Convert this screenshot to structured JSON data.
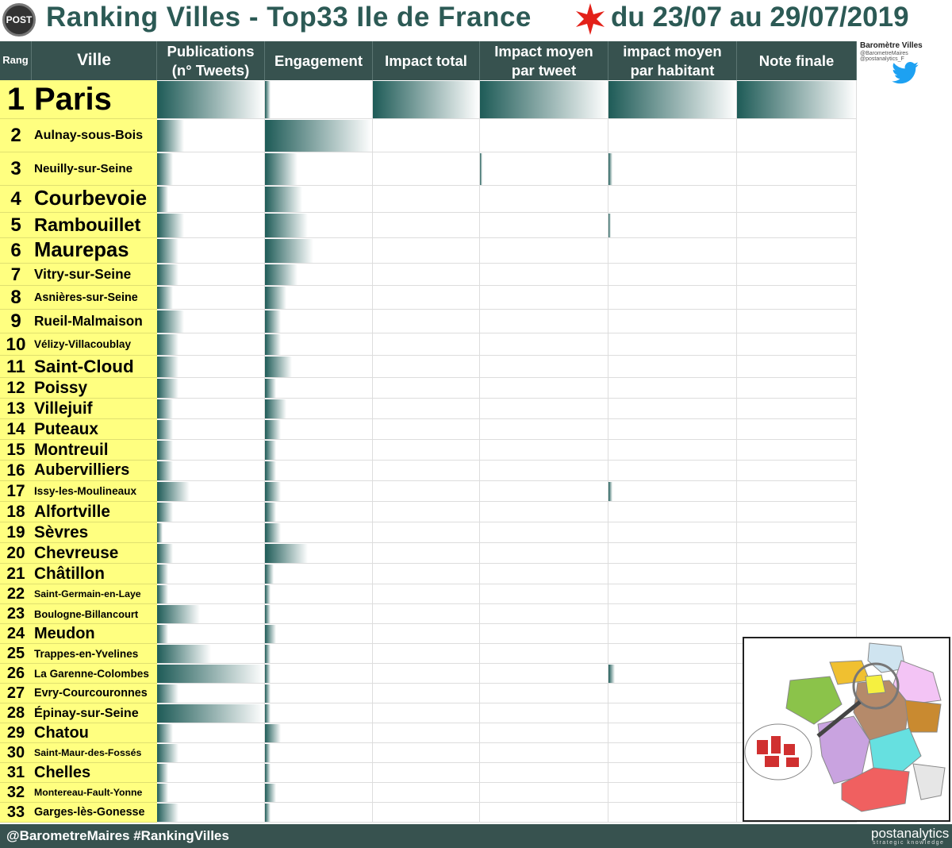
{
  "header": {
    "logo": "POST",
    "title": "Ranking Villes - Top33 Ile de France",
    "period": "du 23/07 au 29/07/2019"
  },
  "side": {
    "title": "Baromètre Villes",
    "handles": "@BarometreMaires @postanalytics_F"
  },
  "table": {
    "columns": [
      "Rang",
      "Ville",
      "Publications (n° Tweets)",
      "Engagement",
      "Impact total",
      "Impact moyen par tweet",
      "impact moyen par habitant",
      "Note finale"
    ],
    "rows": [
      {
        "rank": 1,
        "city": "Paris",
        "bars": [
          100,
          5,
          100,
          100,
          100,
          100
        ]
      },
      {
        "rank": 2,
        "city": "Aulnay-sous-Bois",
        "bars": [
          25,
          100,
          0,
          0,
          0,
          0
        ]
      },
      {
        "rank": 3,
        "city": "Neuilly-sur-Seine",
        "bars": [
          15,
          30,
          0,
          2,
          3,
          0
        ]
      },
      {
        "rank": 4,
        "city": "Courbevoie",
        "bars": [
          10,
          35,
          0,
          0,
          0,
          0
        ]
      },
      {
        "rank": 5,
        "city": "Rambouillet",
        "bars": [
          25,
          40,
          0,
          0,
          2,
          0
        ]
      },
      {
        "rank": 6,
        "city": "Maurepas",
        "bars": [
          20,
          45,
          0,
          0,
          0,
          0
        ]
      },
      {
        "rank": 7,
        "city": "Vitry-sur-Seine",
        "bars": [
          20,
          30,
          0,
          0,
          0,
          0
        ]
      },
      {
        "rank": 8,
        "city": "Asnières-sur-Seine",
        "bars": [
          15,
          20,
          0,
          0,
          0,
          0
        ]
      },
      {
        "rank": 9,
        "city": "Rueil-Malmaison",
        "bars": [
          25,
          15,
          0,
          0,
          0,
          0
        ]
      },
      {
        "rank": 10,
        "city": "Vélizy-Villacoublay",
        "bars": [
          20,
          15,
          0,
          0,
          0,
          0
        ]
      },
      {
        "rank": 11,
        "city": "Saint-Cloud",
        "bars": [
          20,
          25,
          0,
          0,
          0,
          0
        ]
      },
      {
        "rank": 12,
        "city": "Poissy",
        "bars": [
          20,
          10,
          0,
          0,
          0,
          0
        ]
      },
      {
        "rank": 13,
        "city": "Villejuif",
        "bars": [
          15,
          20,
          0,
          0,
          0,
          0
        ]
      },
      {
        "rank": 14,
        "city": "Puteaux",
        "bars": [
          15,
          15,
          0,
          0,
          0,
          0
        ]
      },
      {
        "rank": 15,
        "city": "Montreuil",
        "bars": [
          15,
          10,
          0,
          0,
          0,
          0
        ]
      },
      {
        "rank": 16,
        "city": "Aubervilliers",
        "bars": [
          15,
          10,
          0,
          0,
          0,
          0
        ]
      },
      {
        "rank": 17,
        "city": "Issy-les-Moulineaux",
        "bars": [
          30,
          15,
          0,
          0,
          3,
          0
        ]
      },
      {
        "rank": 18,
        "city": "Alfortville",
        "bars": [
          15,
          10,
          0,
          0,
          0,
          0
        ]
      },
      {
        "rank": 19,
        "city": "Sèvres",
        "bars": [
          5,
          15,
          0,
          0,
          0,
          0
        ]
      },
      {
        "rank": 20,
        "city": "Chevreuse",
        "bars": [
          15,
          40,
          0,
          0,
          0,
          0
        ]
      },
      {
        "rank": 21,
        "city": "Châtillon",
        "bars": [
          10,
          8,
          0,
          0,
          0,
          0
        ]
      },
      {
        "rank": 22,
        "city": "Saint-Germain-en-Laye",
        "bars": [
          10,
          5,
          0,
          0,
          0,
          0
        ]
      },
      {
        "rank": 23,
        "city": "Boulogne-Billancourt",
        "bars": [
          40,
          5,
          0,
          0,
          0,
          0
        ]
      },
      {
        "rank": 24,
        "city": "Meudon",
        "bars": [
          10,
          10,
          0,
          0,
          0,
          0
        ]
      },
      {
        "rank": 25,
        "city": "Trappes-en-Yvelines",
        "bars": [
          50,
          5,
          0,
          0,
          0,
          0
        ]
      },
      {
        "rank": 26,
        "city": "La Garenne-Colombes",
        "bars": [
          100,
          5,
          0,
          0,
          5,
          0
        ]
      },
      {
        "rank": 27,
        "city": "Evry-Courcouronnes",
        "bars": [
          20,
          5,
          0,
          0,
          0,
          0
        ]
      },
      {
        "rank": 28,
        "city": "Épinay-sur-Seine",
        "bars": [
          100,
          5,
          0,
          0,
          0,
          0
        ]
      },
      {
        "rank": 29,
        "city": "Chatou",
        "bars": [
          15,
          15,
          0,
          0,
          0,
          0
        ]
      },
      {
        "rank": 30,
        "city": "Saint-Maur-des-Fossés",
        "bars": [
          20,
          5,
          0,
          0,
          0,
          0
        ]
      },
      {
        "rank": 31,
        "city": "Chelles",
        "bars": [
          10,
          5,
          0,
          0,
          0,
          0
        ]
      },
      {
        "rank": 32,
        "city": "Montereau-Fault-Yonne",
        "bars": [
          10,
          10,
          0,
          0,
          0,
          0
        ]
      },
      {
        "rank": 33,
        "city": "Garges-lès-Gonesse",
        "bars": [
          20,
          5,
          0,
          0,
          0,
          0
        ]
      }
    ]
  },
  "footer": {
    "left": "@BarometreMaires  #RankingVilles",
    "brand": "postanalytics",
    "tagline": "strategic knowledge"
  }
}
